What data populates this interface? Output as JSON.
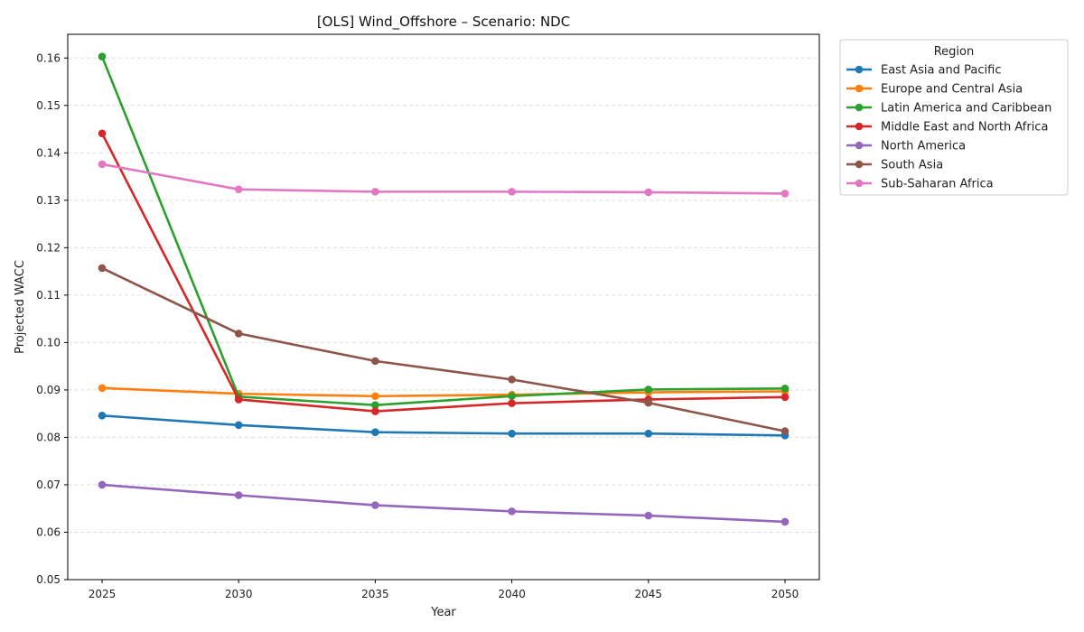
{
  "chart_data": {
    "type": "line",
    "title": "[OLS] Wind_Offshore – Scenario: NDC",
    "xlabel": "Year",
    "ylabel": "Projected WACC",
    "x": [
      2025,
      2030,
      2035,
      2040,
      2045,
      2050
    ],
    "x_ticks": [
      "2025",
      "2030",
      "2035",
      "2040",
      "2045",
      "2050"
    ],
    "ylim": [
      0.05,
      0.165
    ],
    "y_ticks": [
      "0.05",
      "0.06",
      "0.07",
      "0.08",
      "0.09",
      "0.10",
      "0.11",
      "0.12",
      "0.13",
      "0.14",
      "0.15",
      "0.16"
    ],
    "grid": "y-dashed",
    "legend": {
      "title": "Region",
      "placement": "outside-top-right"
    },
    "series": [
      {
        "name": "East Asia and Pacific",
        "color": "#1f77b4",
        "values": [
          0.0846,
          0.0826,
          0.0811,
          0.0808,
          0.0808,
          0.0804
        ]
      },
      {
        "name": "Europe and Central Asia",
        "color": "#ff7f0e",
        "values": [
          0.0904,
          0.0892,
          0.0887,
          0.089,
          0.0895,
          0.0897
        ]
      },
      {
        "name": "Latin America and Caribbean",
        "color": "#2ca02c",
        "values": [
          0.1603,
          0.0886,
          0.0868,
          0.0887,
          0.0901,
          0.0903
        ]
      },
      {
        "name": "Middle East and North Africa",
        "color": "#d62728",
        "values": [
          0.1441,
          0.088,
          0.0855,
          0.0872,
          0.088,
          0.0885
        ]
      },
      {
        "name": "North America",
        "color": "#9467bd",
        "values": [
          0.07,
          0.0678,
          0.0657,
          0.0644,
          0.0635,
          0.0622
        ]
      },
      {
        "name": "South Asia",
        "color": "#8c564b",
        "values": [
          0.1157,
          0.1019,
          0.0961,
          0.0922,
          0.0873,
          0.0813
        ]
      },
      {
        "name": "Sub-Saharan Africa",
        "color": "#e377c2",
        "values": [
          0.1376,
          0.1323,
          0.1318,
          0.1318,
          0.1317,
          0.1314
        ]
      }
    ]
  }
}
